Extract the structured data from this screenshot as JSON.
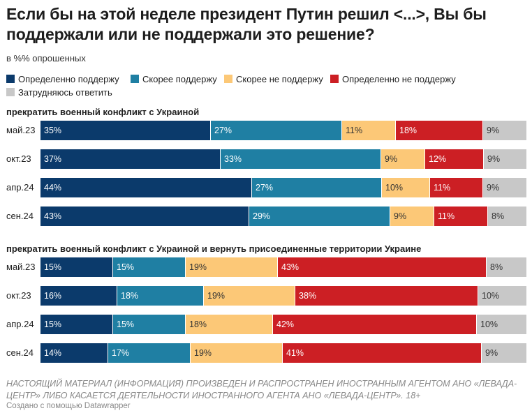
{
  "title": "Если бы на этой неделе президент Путин решил <...>, Вы бы поддержали или не поддержали это решение?",
  "subtitle": "в %% опрошенных",
  "footer_note": "НАСТОЯЩИЙ МАТЕРИАЛ (ИНФОРМАЦИЯ) ПРОИЗВЕДЕН И РАСПРОСТРАНЕН ИНОСТРАННЫМ АГЕНТОМ АНО «ЛЕВАДА-ЦЕНТР» ЛИБО КАСАЕТСЯ ДЕЯТЕЛЬНОСТИ ИНОСТРАННОГО АГЕНТА АНО «ЛЕВАДА-ЦЕНТР». 18+",
  "credit": "Создано с помощью Datawrapper",
  "chart_data": {
    "type": "bar",
    "stacked": true,
    "orientation": "horizontal",
    "unit": "%",
    "series": [
      {
        "name": "Определенно поддержу",
        "color": "#0b3a6b",
        "text_color": "#ffffff"
      },
      {
        "name": "Скорее поддержу",
        "color": "#1f7fa3",
        "text_color": "#ffffff"
      },
      {
        "name": "Скорее не поддержу",
        "color": "#fcc877",
        "text_color": "#333333"
      },
      {
        "name": "Определенно не поддержу",
        "color": "#cc1f24",
        "text_color": "#ffffff"
      },
      {
        "name": "Затрудняюсь ответить",
        "color": "#c8c8c8",
        "text_color": "#333333"
      }
    ],
    "groups": [
      {
        "title": "прекратить военный конфликт с Украиной",
        "rows": [
          {
            "label": "май.23",
            "values": [
              35,
              27,
              11,
              18,
              9
            ]
          },
          {
            "label": "окт.23",
            "values": [
              37,
              33,
              9,
              12,
              9
            ]
          },
          {
            "label": "апр.24",
            "values": [
              44,
              27,
              10,
              11,
              9
            ]
          },
          {
            "label": "сен.24",
            "values": [
              43,
              29,
              9,
              11,
              8
            ]
          }
        ]
      },
      {
        "title": "прекратить военный конфликт с Украиной и вернуть присоединенные территории Украине",
        "rows": [
          {
            "label": "май.23",
            "values": [
              15,
              15,
              19,
              43,
              8
            ]
          },
          {
            "label": "окт.23",
            "values": [
              16,
              18,
              19,
              38,
              10
            ]
          },
          {
            "label": "апр.24",
            "values": [
              15,
              15,
              18,
              42,
              10
            ]
          },
          {
            "label": "сен.24",
            "values": [
              14,
              17,
              19,
              41,
              9
            ]
          }
        ]
      }
    ]
  }
}
